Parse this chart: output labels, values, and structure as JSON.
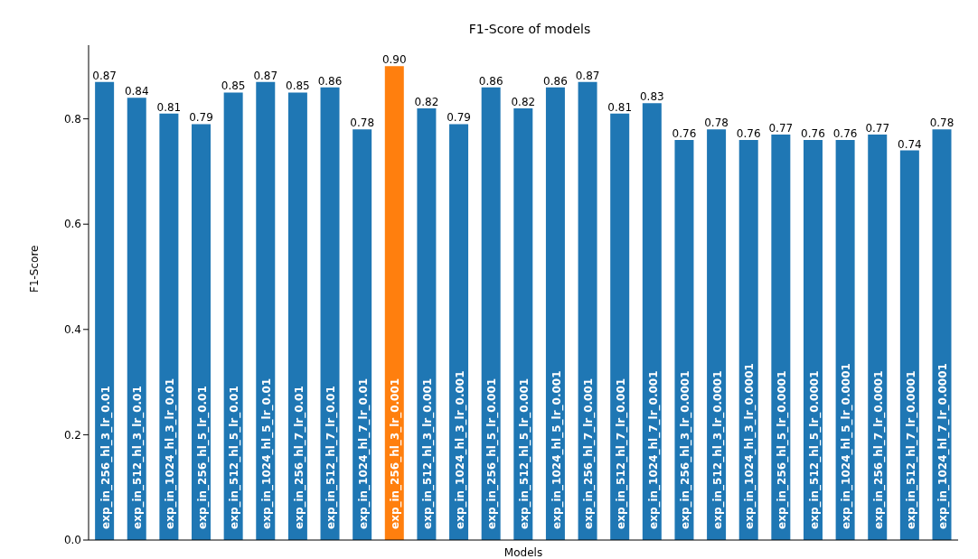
{
  "chart_data": {
    "type": "bar",
    "title": "F1-Score of models",
    "xlabel": "Models",
    "ylabel": "F1-Score",
    "categories": [
      "exp_in_256_hl_3_lr_0.01",
      "exp_in_512_hl_3_lr_0.01",
      "exp_in_1024_hl_3_lr_0.01",
      "exp_in_256_hl_5_lr_0.01",
      "exp_in_512_hl_5_lr_0.01",
      "exp_in_1024_hl_5_lr_0.01",
      "exp_in_256_hl_7_lr_0.01",
      "exp_in_512_hl_7_lr_0.01",
      "exp_in_1024_hl_7_lr_0.01",
      "exp_in_256_hl_3_lr_0.001",
      "exp_in_512_hl_3_lr_0.001",
      "exp_in_1024_hl_3_lr_0.001",
      "exp_in_256_hl_5_lr_0.001",
      "exp_in_512_hl_5_lr_0.001",
      "exp_in_1024_hl_5_lr_0.001",
      "exp_in_256_hl_7_lr_0.001",
      "exp_in_512_hl_7_lr_0.001",
      "exp_in_1024_hl_7_lr_0.001",
      "exp_in_256_hl_3_lr_0.0001",
      "exp_in_512_hl_3_lr_0.0001",
      "exp_in_1024_hl_3_lr_0.0001",
      "exp_in_256_hl_5_lr_0.0001",
      "exp_in_512_hl_5_lr_0.0001",
      "exp_in_1024_hl_5_lr_0.0001",
      "exp_in_256_hl_7_lr_0.0001",
      "exp_in_512_hl_7_lr_0.0001",
      "exp_in_1024_hl_7_lr_0.0001"
    ],
    "values": [
      0.87,
      0.84,
      0.81,
      0.79,
      0.85,
      0.87,
      0.85,
      0.86,
      0.78,
      0.9,
      0.82,
      0.79,
      0.86,
      0.82,
      0.86,
      0.87,
      0.81,
      0.83,
      0.76,
      0.78,
      0.76,
      0.77,
      0.76,
      0.76,
      0.77,
      0.74,
      0.78
    ],
    "value_labels": [
      "0.87",
      "0.84",
      "0.81",
      "0.79",
      "0.85",
      "0.87",
      "0.85",
      "0.86",
      "0.78",
      "0.90",
      "0.82",
      "0.79",
      "0.86",
      "0.82",
      "0.86",
      "0.87",
      "0.81",
      "0.83",
      "0.76",
      "0.78",
      "0.76",
      "0.77",
      "0.76",
      "0.76",
      "0.77",
      "0.74",
      "0.78"
    ],
    "colors": [
      "#1f77b4",
      "#1f77b4",
      "#1f77b4",
      "#1f77b4",
      "#1f77b4",
      "#1f77b4",
      "#1f77b4",
      "#1f77b4",
      "#1f77b4",
      "#ff7f0e",
      "#1f77b4",
      "#1f77b4",
      "#1f77b4",
      "#1f77b4",
      "#1f77b4",
      "#1f77b4",
      "#1f77b4",
      "#1f77b4",
      "#1f77b4",
      "#1f77b4",
      "#1f77b4",
      "#1f77b4",
      "#1f77b4",
      "#1f77b4",
      "#1f77b4",
      "#1f77b4",
      "#1f77b4"
    ],
    "ylim": [
      0,
      0.94
    ],
    "yticks": [
      {
        "value": 0,
        "label": "0.0"
      },
      {
        "value": 0.2,
        "label": "0.2"
      },
      {
        "value": 0.4,
        "label": "0.4"
      },
      {
        "value": 0.6,
        "label": "0.6"
      },
      {
        "value": 0.8,
        "label": "0.8"
      }
    ]
  }
}
